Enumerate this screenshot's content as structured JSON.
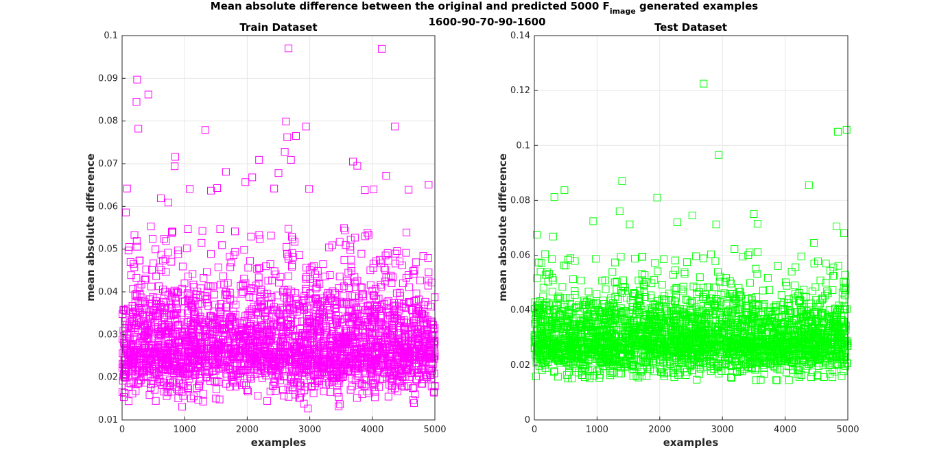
{
  "figure": {
    "suptitle_main": "Mean absolute difference between the original and predicted 5000 F",
    "suptitle_sub": "image",
    "suptitle_tail": " generated examples",
    "suptitle_line2": "1600-90-70-90-1600"
  },
  "chart_data": [
    {
      "type": "scatter",
      "title": "Train Dataset",
      "xlabel": "examples",
      "ylabel": "mean absolute difference",
      "xlim": [
        0,
        5000
      ],
      "ylim": [
        0.01,
        0.1
      ],
      "xticks": [
        "0",
        "1000",
        "2000",
        "3000",
        "4000",
        "5000"
      ],
      "yticks": [
        "0.01",
        "0.02",
        "0.03",
        "0.04",
        "0.05",
        "0.06",
        "0.07",
        "0.08",
        "0.09",
        "0.1"
      ],
      "grid": true,
      "marker": "square",
      "color": "#ff00ff",
      "n_points": 5000,
      "distribution": {
        "typical_range": [
          0.015,
          0.045
        ],
        "center": 0.027
      },
      "notable_points": [
        {
          "x": 80,
          "y": 0.0642
        },
        {
          "x": 60,
          "y": 0.0586
        },
        {
          "x": 230,
          "y": 0.0845
        },
        {
          "x": 240,
          "y": 0.0897
        },
        {
          "x": 260,
          "y": 0.0782
        },
        {
          "x": 420,
          "y": 0.0862
        },
        {
          "x": 460,
          "y": 0.0553
        },
        {
          "x": 620,
          "y": 0.0619
        },
        {
          "x": 740,
          "y": 0.0609
        },
        {
          "x": 850,
          "y": 0.0716
        },
        {
          "x": 840,
          "y": 0.0694
        },
        {
          "x": 1080,
          "y": 0.0641
        },
        {
          "x": 1330,
          "y": 0.0779
        },
        {
          "x": 1420,
          "y": 0.0637
        },
        {
          "x": 1520,
          "y": 0.0643
        },
        {
          "x": 1660,
          "y": 0.0681
        },
        {
          "x": 1970,
          "y": 0.0657
        },
        {
          "x": 2080,
          "y": 0.0668
        },
        {
          "x": 2190,
          "y": 0.0709
        },
        {
          "x": 2430,
          "y": 0.0642
        },
        {
          "x": 2500,
          "y": 0.0678
        },
        {
          "x": 2600,
          "y": 0.0728
        },
        {
          "x": 2620,
          "y": 0.0799
        },
        {
          "x": 2660,
          "y": 0.097
        },
        {
          "x": 2640,
          "y": 0.0762
        },
        {
          "x": 2700,
          "y": 0.0709
        },
        {
          "x": 2780,
          "y": 0.0765
        },
        {
          "x": 2940,
          "y": 0.0787
        },
        {
          "x": 2990,
          "y": 0.0641
        },
        {
          "x": 3690,
          "y": 0.0705
        },
        {
          "x": 3760,
          "y": 0.0695
        },
        {
          "x": 3880,
          "y": 0.0638
        },
        {
          "x": 4020,
          "y": 0.064
        },
        {
          "x": 4150,
          "y": 0.0969
        },
        {
          "x": 4220,
          "y": 0.0672
        },
        {
          "x": 4360,
          "y": 0.0787
        },
        {
          "x": 4580,
          "y": 0.0639
        },
        {
          "x": 4900,
          "y": 0.0651
        },
        {
          "x": 2970,
          "y": 0.0127
        },
        {
          "x": 3460,
          "y": 0.0132
        },
        {
          "x": 960,
          "y": 0.0131
        }
      ]
    },
    {
      "type": "scatter",
      "title": "Test Dataset",
      "xlabel": "examples",
      "ylabel": "mean absolute difference",
      "xlim": [
        0,
        5000
      ],
      "ylim": [
        0,
        0.14
      ],
      "xticks": [
        "0",
        "1000",
        "2000",
        "3000",
        "4000",
        "5000"
      ],
      "yticks": [
        "0",
        "0.02",
        "0.04",
        "0.06",
        "0.08",
        "0.1",
        "0.12",
        "0.14"
      ],
      "grid": true,
      "marker": "square",
      "color": "#00ff00",
      "n_points": 5000,
      "distribution": {
        "typical_range": [
          0.016,
          0.05
        ],
        "center": 0.029
      },
      "notable_points": [
        {
          "x": 40,
          "y": 0.0675
        },
        {
          "x": 320,
          "y": 0.0812
        },
        {
          "x": 300,
          "y": 0.0668
        },
        {
          "x": 480,
          "y": 0.0837
        },
        {
          "x": 940,
          "y": 0.0724
        },
        {
          "x": 1360,
          "y": 0.076
        },
        {
          "x": 1400,
          "y": 0.087
        },
        {
          "x": 1520,
          "y": 0.0712
        },
        {
          "x": 1960,
          "y": 0.081
        },
        {
          "x": 2280,
          "y": 0.072
        },
        {
          "x": 2520,
          "y": 0.0745
        },
        {
          "x": 2700,
          "y": 0.1225
        },
        {
          "x": 2940,
          "y": 0.0965
        },
        {
          "x": 2900,
          "y": 0.0712
        },
        {
          "x": 3500,
          "y": 0.075
        },
        {
          "x": 3560,
          "y": 0.0715
        },
        {
          "x": 4380,
          "y": 0.0855
        },
        {
          "x": 4840,
          "y": 0.105
        },
        {
          "x": 4980,
          "y": 0.1057
        },
        {
          "x": 4820,
          "y": 0.0705
        },
        {
          "x": 4940,
          "y": 0.068
        },
        {
          "x": 4460,
          "y": 0.0645
        }
      ]
    }
  ]
}
